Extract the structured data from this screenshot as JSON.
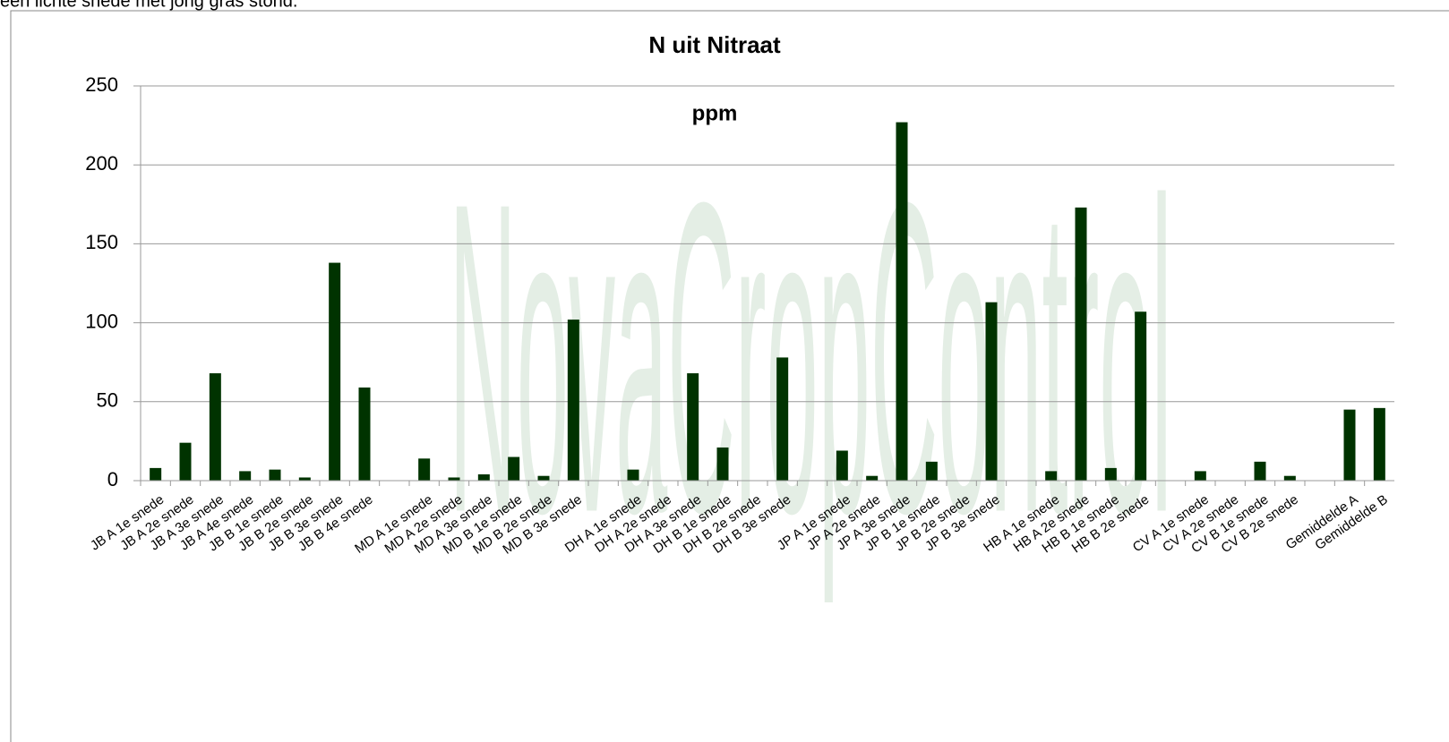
{
  "header_text": "een lichte snede met jong gras stond.",
  "watermark": "NovaCropControl",
  "chart_data": {
    "type": "bar",
    "title": "N uit Nitraat",
    "subtitle": "ppm",
    "categories": [
      "JB A 1e snede",
      "JB A 2e snede",
      "JB A 3e snede",
      "JB A 4e snede",
      "JB B 1e snede",
      "JB B 2e snede",
      "JB B 3e snede",
      "JB B 4e snede",
      null,
      "MD A 1e snede",
      "MD A 2e snede",
      "MD A 3e snede",
      "MD B 1e snede",
      "MD B 2e snede",
      "MD B 3e snede",
      null,
      "DH A 1e snede",
      "DH A 2e snede",
      "DH A 3e snede",
      "DH B 1e snede",
      "DH B 2e snede",
      "DH B 3e snede",
      null,
      "JP A 1e snede",
      "JP A 2e snede",
      "JP A 3e snede",
      "JP B 1e snede",
      "JP B  2e snede",
      "JP B  3e snede",
      null,
      "HB A 1e snede",
      "HB A 2e snede",
      "HB B 1e snede",
      "HB B 2e snede",
      null,
      "CV A 1e snede",
      "CV A 2e snede",
      "CV B 1e snede",
      "CV B 2e snede",
      null,
      "Gemiddelde A",
      "Gemiddelde B"
    ],
    "values": [
      8,
      24,
      68,
      6,
      7,
      2,
      138,
      59,
      null,
      14,
      2,
      4,
      15,
      3,
      102,
      null,
      7,
      0,
      68,
      21,
      0,
      78,
      null,
      19,
      3,
      227,
      12,
      0,
      113,
      null,
      6,
      173,
      8,
      107,
      null,
      6,
      0,
      12,
      3,
      null,
      45,
      46
    ],
    "color": "#003300",
    "ylim": [
      0,
      250
    ],
    "yticks": [
      0,
      50,
      100,
      150,
      200,
      250
    ],
    "grid": true
  }
}
